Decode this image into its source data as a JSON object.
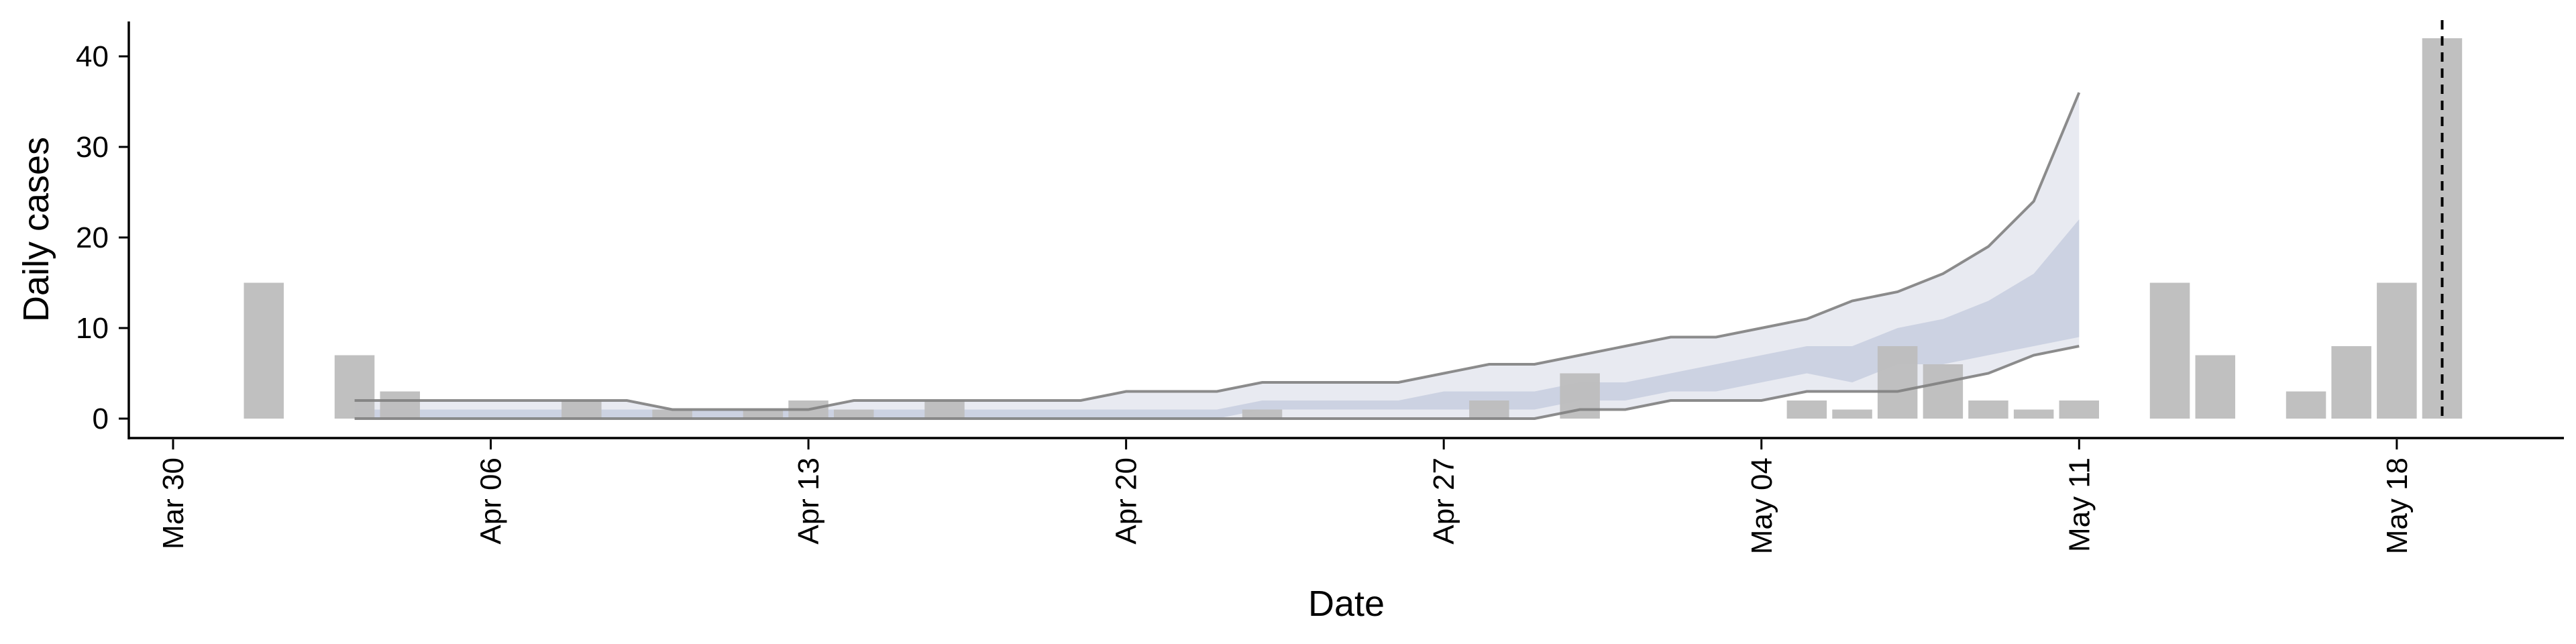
{
  "chart_data": {
    "type": "bar",
    "xlabel": "Date",
    "ylabel": "Daily cases",
    "xlim": [
      "2020-03-30",
      "2020-05-21"
    ],
    "ylim": [
      -2,
      44
    ],
    "yticks": [
      0,
      10,
      20,
      30,
      40
    ],
    "xticks": [
      {
        "date": "2020-03-30",
        "label": "Mar 30"
      },
      {
        "date": "2020-04-06",
        "label": "Apr 06"
      },
      {
        "date": "2020-04-13",
        "label": "Apr 13"
      },
      {
        "date": "2020-04-20",
        "label": "Apr 20"
      },
      {
        "date": "2020-04-27",
        "label": "Apr 27"
      },
      {
        "date": "2020-05-04",
        "label": "May 04"
      },
      {
        "date": "2020-05-11",
        "label": "May 11"
      },
      {
        "date": "2020-05-18",
        "label": "May 18"
      }
    ],
    "bars": {
      "color": "#bdbdbd",
      "dates": [
        "2020-04-01",
        "2020-04-03",
        "2020-04-04",
        "2020-04-08",
        "2020-04-10",
        "2020-04-12",
        "2020-04-13",
        "2020-04-14",
        "2020-04-16",
        "2020-04-23",
        "2020-04-28",
        "2020-04-30",
        "2020-05-05",
        "2020-05-06",
        "2020-05-07",
        "2020-05-08",
        "2020-05-09",
        "2020-05-10",
        "2020-05-11",
        "2020-05-13",
        "2020-05-14",
        "2020-05-16",
        "2020-05-17",
        "2020-05-18",
        "2020-05-19"
      ],
      "values": [
        15,
        7,
        3,
        2,
        1,
        1,
        2,
        1,
        2,
        1,
        2,
        5,
        2,
        1,
        8,
        6,
        2,
        1,
        2,
        15,
        7,
        3,
        8,
        15,
        42
      ]
    },
    "forecast": {
      "dates": [
        "2020-04-03",
        "2020-04-04",
        "2020-04-05",
        "2020-04-06",
        "2020-04-07",
        "2020-04-08",
        "2020-04-09",
        "2020-04-10",
        "2020-04-11",
        "2020-04-12",
        "2020-04-13",
        "2020-04-14",
        "2020-04-15",
        "2020-04-16",
        "2020-04-17",
        "2020-04-18",
        "2020-04-19",
        "2020-04-20",
        "2020-04-21",
        "2020-04-22",
        "2020-04-23",
        "2020-04-24",
        "2020-04-25",
        "2020-04-26",
        "2020-04-27",
        "2020-04-28",
        "2020-04-29",
        "2020-04-30",
        "2020-05-01",
        "2020-05-02",
        "2020-05-03",
        "2020-05-04",
        "2020-05-05",
        "2020-05-06",
        "2020-05-07",
        "2020-05-08",
        "2020-05-09",
        "2020-05-10",
        "2020-05-11"
      ],
      "outer_low": [
        0,
        0,
        0,
        0,
        0,
        0,
        0,
        0,
        0,
        0,
        0,
        0,
        0,
        0,
        0,
        0,
        0,
        0,
        0,
        0,
        0,
        0,
        0,
        0,
        0,
        0,
        0,
        1,
        1,
        2,
        2,
        2,
        3,
        3,
        3,
        4,
        5,
        7,
        8
      ],
      "inner_low": [
        0,
        0,
        0,
        0,
        0,
        0,
        0,
        0,
        0,
        0,
        0,
        0,
        0,
        0,
        0,
        0,
        0,
        0,
        0,
        0,
        1,
        1,
        1,
        1,
        1,
        1,
        1,
        2,
        2,
        3,
        3,
        4,
        5,
        4,
        6,
        6,
        7,
        8,
        9
      ],
      "inner_high": [
        1,
        1,
        1,
        1,
        1,
        1,
        1,
        1,
        1,
        1,
        1,
        1,
        1,
        1,
        1,
        1,
        1,
        1,
        1,
        1,
        2,
        2,
        2,
        2,
        3,
        3,
        3,
        4,
        4,
        5,
        6,
        7,
        8,
        8,
        10,
        11,
        13,
        16,
        22
      ],
      "outer_high": [
        2,
        2,
        2,
        2,
        2,
        2,
        2,
        1,
        1,
        1,
        1,
        2,
        2,
        2,
        2,
        2,
        2,
        3,
        3,
        3,
        4,
        4,
        4,
        4,
        5,
        6,
        6,
        7,
        8,
        9,
        9,
        10,
        11,
        13,
        14,
        16,
        19,
        24,
        36
      ],
      "outer_color": "#e8eaf1",
      "inner_color": "#ccd2e2",
      "line_color": "#808080"
    },
    "marker": {
      "date": "2020-05-19",
      "style": "dashed",
      "color": "#000000"
    },
    "grid": false,
    "legend": "none"
  }
}
